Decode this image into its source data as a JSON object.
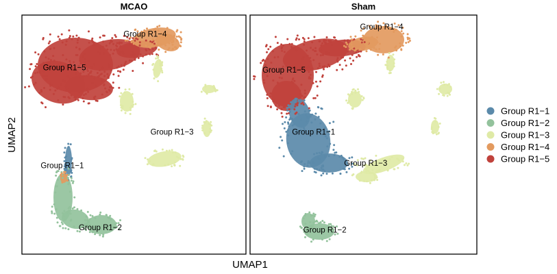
{
  "chart_data": {
    "type": "scatter",
    "xlabel": "UMAP1",
    "ylabel": "UMAP2",
    "legend": {
      "placement": "right",
      "entries": [
        {
          "name": "Group R1−1",
          "color": "#5b8aaa"
        },
        {
          "name": "Group R1−2",
          "color": "#93c29c"
        },
        {
          "name": "Group R1−3",
          "color": "#dfeaa6"
        },
        {
          "name": "Group R1−4",
          "color": "#e39a5f"
        },
        {
          "name": "Group R1−5",
          "color": "#c0423c"
        }
      ]
    },
    "panels": [
      {
        "title": "MCAO",
        "group_labels": [
          {
            "text": "Group R1−5",
            "x": 0.19,
            "y": 0.77
          },
          {
            "text": "Group R1−4",
            "x": 0.55,
            "y": 0.91
          },
          {
            "text": "Group R1−3",
            "x": 0.67,
            "y": 0.5
          },
          {
            "text": "Group R1−1",
            "x": 0.18,
            "y": 0.36
          },
          {
            "text": "Group R1−2",
            "x": 0.35,
            "y": 0.1
          }
        ]
      },
      {
        "title": "Sham",
        "group_labels": [
          {
            "text": "Group R1−4",
            "x": 0.58,
            "y": 0.94
          },
          {
            "text": "Group R1−5",
            "x": 0.15,
            "y": 0.76
          },
          {
            "text": "Group R1−1",
            "x": 0.28,
            "y": 0.5
          },
          {
            "text": "Group R1−3",
            "x": 0.51,
            "y": 0.37
          },
          {
            "text": "Group R1−2",
            "x": 0.33,
            "y": 0.09
          }
        ]
      }
    ]
  }
}
